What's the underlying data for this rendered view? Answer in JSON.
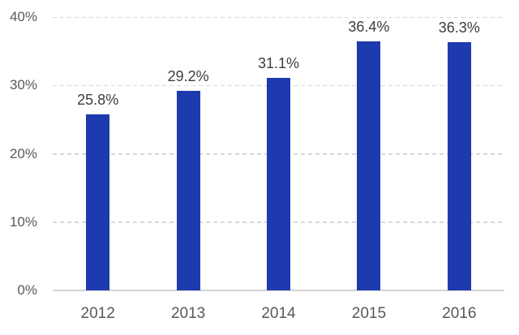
{
  "chart_data": {
    "type": "bar",
    "title": "",
    "xlabel": "",
    "ylabel": "",
    "categories": [
      "2012",
      "2013",
      "2014",
      "2015",
      "2016"
    ],
    "values": [
      25.8,
      29.2,
      31.1,
      36.4,
      36.3
    ],
    "data_labels": [
      "25.8%",
      "29.2%",
      "31.1%",
      "36.4%",
      "36.3%"
    ],
    "ylim": [
      0,
      40
    ],
    "yticks": [
      {
        "value": 0,
        "label": "0%"
      },
      {
        "value": 10,
        "label": "10%"
      },
      {
        "value": 20,
        "label": "20%"
      },
      {
        "value": 30,
        "label": "30%"
      },
      {
        "value": 40,
        "label": "40%"
      }
    ],
    "grid": "horizontal-dashed",
    "legend_position": "none",
    "colors": {
      "bar": "#1E3AAF",
      "gridline": "#D9D9D9",
      "axis_line": "#D2D2D2",
      "axis_label": "#595959",
      "data_label": "#3D3D3D",
      "background": "#FFFFFF"
    }
  }
}
